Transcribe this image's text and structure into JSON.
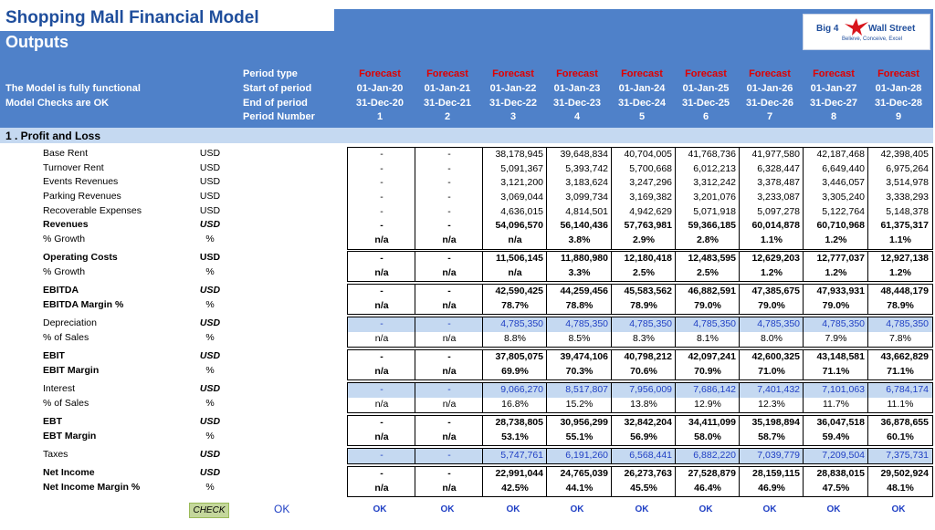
{
  "header": {
    "title": "Shopping Mall Financial Model",
    "subtitle": "Outputs",
    "status_line1": "The Model is fully functional",
    "status_line2": "Model Checks are OK",
    "row_labels": [
      "Period type",
      "Start of period",
      "End of period",
      "Period Number"
    ],
    "logo": {
      "left": "Big 4",
      "right": "Wall Street",
      "tagline": "Believe, Conceive, Excel"
    }
  },
  "periods": [
    {
      "type": "Forecast",
      "start": "01-Jan-20",
      "end": "31-Dec-20",
      "num": "1"
    },
    {
      "type": "Forecast",
      "start": "01-Jan-21",
      "end": "31-Dec-21",
      "num": "2"
    },
    {
      "type": "Forecast",
      "start": "01-Jan-22",
      "end": "31-Dec-22",
      "num": "3"
    },
    {
      "type": "Forecast",
      "start": "01-Jan-23",
      "end": "31-Dec-23",
      "num": "4"
    },
    {
      "type": "Forecast",
      "start": "01-Jan-24",
      "end": "31-Dec-24",
      "num": "5"
    },
    {
      "type": "Forecast",
      "start": "01-Jan-25",
      "end": "31-Dec-25",
      "num": "6"
    },
    {
      "type": "Forecast",
      "start": "01-Jan-26",
      "end": "31-Dec-26",
      "num": "7"
    },
    {
      "type": "Forecast",
      "start": "01-Jan-27",
      "end": "31-Dec-27",
      "num": "8"
    },
    {
      "type": "Forecast",
      "start": "01-Jan-28",
      "end": "31-Dec-28",
      "num": "9"
    }
  ],
  "section_title": "1 .  Profit and Loss",
  "rows": [
    {
      "label": "Base Rent",
      "unit": "USD",
      "values": [
        "-",
        "-",
        "38,178,945",
        "39,648,834",
        "40,704,005",
        "41,768,736",
        "41,977,580",
        "42,187,468",
        "42,398,405"
      ]
    },
    {
      "label": "Turnover Rent",
      "unit": "USD",
      "values": [
        "-",
        "-",
        "5,091,367",
        "5,393,742",
        "5,700,668",
        "6,012,213",
        "6,328,447",
        "6,649,440",
        "6,975,264"
      ]
    },
    {
      "label": "Events Revenues",
      "unit": "USD",
      "values": [
        "-",
        "-",
        "3,121,200",
        "3,183,624",
        "3,247,296",
        "3,312,242",
        "3,378,487",
        "3,446,057",
        "3,514,978"
      ]
    },
    {
      "label": "Parking Revenues",
      "unit": "USD",
      "values": [
        "-",
        "-",
        "3,069,044",
        "3,099,734",
        "3,169,382",
        "3,201,076",
        "3,233,087",
        "3,305,240",
        "3,338,293"
      ]
    },
    {
      "label": "Recoverable Expenses",
      "unit": "USD",
      "values": [
        "-",
        "-",
        "4,636,015",
        "4,814,501",
        "4,942,629",
        "5,071,918",
        "5,097,278",
        "5,122,764",
        "5,148,378"
      ]
    },
    {
      "label": "Revenues",
      "unit": "USD",
      "values": [
        "-",
        "-",
        "54,096,570",
        "56,140,436",
        "57,763,981",
        "59,366,185",
        "60,014,878",
        "60,710,968",
        "61,375,317"
      ]
    },
    {
      "label": "% Growth",
      "unit": "%",
      "values": [
        "n/a",
        "n/a",
        "n/a",
        "3.8%",
        "2.9%",
        "2.8%",
        "1.1%",
        "1.2%",
        "1.1%"
      ]
    },
    {
      "label": "Operating Costs",
      "unit": "USD",
      "values": [
        "-",
        "-",
        "11,506,145",
        "11,880,980",
        "12,180,418",
        "12,483,595",
        "12,629,203",
        "12,777,037",
        "12,927,138"
      ]
    },
    {
      "label": "% Growth",
      "unit": "%",
      "values": [
        "n/a",
        "n/a",
        "n/a",
        "3.3%",
        "2.5%",
        "2.5%",
        "1.2%",
        "1.2%",
        "1.2%"
      ]
    },
    {
      "label": "EBITDA",
      "unit": "USD",
      "values": [
        "-",
        "-",
        "42,590,425",
        "44,259,456",
        "45,583,562",
        "46,882,591",
        "47,385,675",
        "47,933,931",
        "48,448,179"
      ]
    },
    {
      "label": "EBITDA Margin %",
      "unit": "%",
      "values": [
        "n/a",
        "n/a",
        "78.7%",
        "78.8%",
        "78.9%",
        "79.0%",
        "79.0%",
        "79.0%",
        "78.9%"
      ]
    },
    {
      "label": "Depreciation",
      "unit": "USD",
      "values": [
        "-",
        "-",
        "4,785,350",
        "4,785,350",
        "4,785,350",
        "4,785,350",
        "4,785,350",
        "4,785,350",
        "4,785,350"
      ]
    },
    {
      "label": "% of Sales",
      "unit": "%",
      "values": [
        "n/a",
        "n/a",
        "8.8%",
        "8.5%",
        "8.3%",
        "8.1%",
        "8.0%",
        "7.9%",
        "7.8%"
      ]
    },
    {
      "label": "EBIT",
      "unit": "USD",
      "values": [
        "-",
        "-",
        "37,805,075",
        "39,474,106",
        "40,798,212",
        "42,097,241",
        "42,600,325",
        "43,148,581",
        "43,662,829"
      ]
    },
    {
      "label": "EBIT Margin",
      "unit": "%",
      "values": [
        "n/a",
        "n/a",
        "69.9%",
        "70.3%",
        "70.6%",
        "70.9%",
        "71.0%",
        "71.1%",
        "71.1%"
      ]
    },
    {
      "label": "Interest",
      "unit": "USD",
      "values": [
        "-",
        "-",
        "9,066,270",
        "8,517,807",
        "7,956,009",
        "7,686,142",
        "7,401,432",
        "7,101,063",
        "6,784,174"
      ]
    },
    {
      "label": "% of Sales",
      "unit": "%",
      "values": [
        "n/a",
        "n/a",
        "16.8%",
        "15.2%",
        "13.8%",
        "12.9%",
        "12.3%",
        "11.7%",
        "11.1%"
      ]
    },
    {
      "label": "EBT",
      "unit": "USD",
      "values": [
        "-",
        "-",
        "28,738,805",
        "30,956,299",
        "32,842,204",
        "34,411,099",
        "35,198,894",
        "36,047,518",
        "36,878,655"
      ]
    },
    {
      "label": "EBT Margin",
      "unit": "%",
      "values": [
        "n/a",
        "n/a",
        "53.1%",
        "55.1%",
        "56.9%",
        "58.0%",
        "58.7%",
        "59.4%",
        "60.1%"
      ]
    },
    {
      "label": "Taxes",
      "unit": "USD",
      "values": [
        "-",
        "-",
        "5,747,761",
        "6,191,260",
        "6,568,441",
        "6,882,220",
        "7,039,779",
        "7,209,504",
        "7,375,731"
      ]
    },
    {
      "label": "Net Income",
      "unit": "USD",
      "values": [
        "-",
        "-",
        "22,991,044",
        "24,765,039",
        "26,273,763",
        "27,528,879",
        "28,159,115",
        "28,838,015",
        "29,502,924"
      ]
    },
    {
      "label": "Net Income Margin %",
      "unit": "%",
      "values": [
        "n/a",
        "n/a",
        "42.5%",
        "44.1%",
        "45.5%",
        "46.4%",
        "46.9%",
        "47.5%",
        "48.1%"
      ]
    }
  ],
  "check": {
    "label": "CHECK",
    "status": "OK",
    "values": [
      "OK",
      "OK",
      "OK",
      "OK",
      "OK",
      "OK",
      "OK",
      "OK",
      "OK"
    ]
  },
  "colors": {
    "header_band": "#4f81c9",
    "title_text": "#1f4e9c",
    "forecast_text": "#e00000",
    "shaded_rows": "#c5d9f1",
    "linked_values": "#1f3fc4",
    "check_fill": "#c4d79b"
  }
}
